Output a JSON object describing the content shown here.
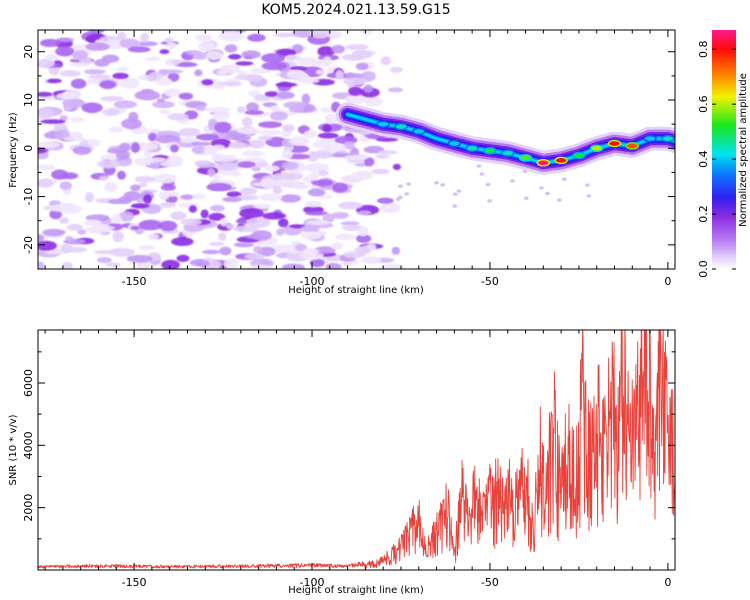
{
  "title": "KOM5.2024.021.13.59.G15",
  "colorbar": {
    "label": "Normalized spectral amplitude",
    "ticks": [
      0.0,
      0.2,
      0.4,
      0.6,
      0.8
    ],
    "tick_labels": [
      "0.0",
      "0.2",
      "0.4",
      "0.6",
      "0.8"
    ],
    "range": [
      0,
      0.87
    ],
    "colormap": "white-purple-blue-cyan-green-yellow-red-magenta"
  },
  "chart_data": [
    {
      "type": "heatmap",
      "xlabel": "Height of straight line (km)",
      "ylabel": "Frequency (Hz)",
      "xlim": [
        -177,
        2
      ],
      "ylim": [
        -25,
        24.5
      ],
      "xticks": [
        -150,
        -100,
        -50,
        0
      ],
      "xtick_labels": [
        "-150",
        "-100",
        "-50",
        "0"
      ],
      "yticks": [
        -20,
        -10,
        0,
        10,
        20
      ],
      "ytick_labels": [
        "-20",
        "-10",
        "0",
        "10",
        "20"
      ],
      "noise_region_x": [
        -177,
        -82
      ],
      "ridge": {
        "x": [
          -90,
          -85,
          -80,
          -75,
          -70,
          -65,
          -60,
          -55,
          -50,
          -45,
          -40,
          -35,
          -30,
          -25,
          -20,
          -15,
          -10,
          -5,
          0,
          2
        ],
        "frequency": [
          7,
          6,
          5,
          4.5,
          3.5,
          2,
          1,
          0,
          -0.5,
          -1,
          -2,
          -3,
          -2.5,
          -1.5,
          0,
          1,
          0.5,
          2,
          2,
          1.5
        ],
        "peak_amplitude": [
          0.3,
          0.35,
          0.4,
          0.45,
          0.4,
          0.35,
          0.4,
          0.45,
          0.5,
          0.45,
          0.55,
          0.85,
          0.8,
          0.5,
          0.6,
          0.8,
          0.75,
          0.4,
          0.45,
          0.35
        ]
      }
    },
    {
      "type": "line",
      "xlabel": "Height of straight line (km)",
      "ylabel": "SNR (10 * v/v)",
      "xlim": [
        -177,
        2
      ],
      "ylim": [
        0,
        7700
      ],
      "xticks": [
        -150,
        -100,
        -50,
        0
      ],
      "xtick_labels": [
        "-150",
        "-100",
        "-50",
        "0"
      ],
      "yticks": [
        2000,
        4000,
        6000
      ],
      "ytick_labels": [
        "2000",
        "4000",
        "6000"
      ],
      "series": [
        {
          "color": "#e8423a",
          "x": [
            -177,
            -160,
            -140,
            -120,
            -100,
            -90,
            -85,
            -82,
            -78,
            -75,
            -72,
            -70,
            -68,
            -66,
            -64,
            -62,
            -60,
            -58,
            -56,
            -54,
            -52,
            -50,
            -48,
            -46,
            -44,
            -42,
            -40,
            -38,
            -36,
            -34,
            -32,
            -30,
            -28,
            -26,
            -24,
            -22,
            -20,
            -18,
            -16,
            -14,
            -12,
            -10,
            -8,
            -6,
            -4,
            -2,
            0,
            2
          ],
          "y": [
            100,
            130,
            110,
            120,
            150,
            130,
            200,
            250,
            500,
            800,
            1400,
            1700,
            600,
            1200,
            1500,
            2400,
            400,
            2700,
            1600,
            2600,
            1800,
            2500,
            2900,
            2000,
            3100,
            2200,
            3500,
            1400,
            3800,
            3400,
            4800,
            2800,
            4300,
            3000,
            6000,
            3800,
            5000,
            4300,
            5400,
            5000,
            6400,
            4500,
            5600,
            7600,
            3900,
            6900,
            4500,
            4300
          ]
        }
      ]
    }
  ]
}
